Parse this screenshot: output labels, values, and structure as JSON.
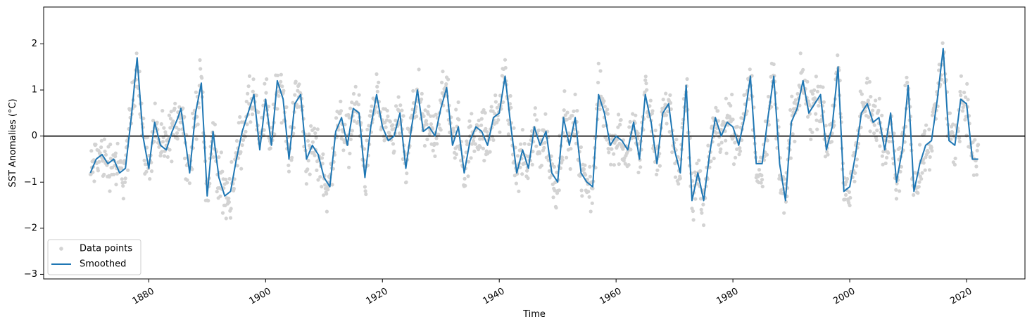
{
  "chart_data": {
    "type": "line",
    "title": "",
    "xlabel": "Time",
    "ylabel": "SST Anomalies (°C)",
    "xlim": [
      1862,
      2030
    ],
    "ylim": [
      -3.1,
      2.8
    ],
    "x_ticks": [
      1880,
      1900,
      1920,
      1940,
      1960,
      1980,
      2000,
      2020
    ],
    "x_tick_labels": [
      "1880",
      "1900",
      "1920",
      "1940",
      "1960",
      "1980",
      "2000",
      "2020"
    ],
    "y_ticks": [
      -3,
      -2,
      -1,
      0,
      1,
      2
    ],
    "y_tick_labels": [
      "−3",
      "−2",
      "−1",
      "0",
      "1",
      "2"
    ],
    "grid": false,
    "legend_position": "lower-left",
    "reference_line": {
      "y": 0,
      "color": "#000000"
    },
    "series": [
      {
        "name": "Data points",
        "kind": "scatter",
        "color": "#d3d3d3",
        "note": "monthly anomalies scattered around the smoothed curve (≈1870–2022)",
        "spread": 0.35
      },
      {
        "name": "Smoothed",
        "kind": "line",
        "color": "#1f77b4",
        "points": [
          [
            1870.0,
            -0.8
          ],
          [
            1871.0,
            -0.5
          ],
          [
            1872.0,
            -0.4
          ],
          [
            1873.0,
            -0.6
          ],
          [
            1874.0,
            -0.5
          ],
          [
            1875.0,
            -0.8
          ],
          [
            1876.0,
            -0.7
          ],
          [
            1877.0,
            0.4
          ],
          [
            1878.0,
            1.7
          ],
          [
            1879.0,
            0.0
          ],
          [
            1880.0,
            -0.7
          ],
          [
            1881.0,
            0.3
          ],
          [
            1882.0,
            -0.2
          ],
          [
            1883.0,
            -0.3
          ],
          [
            1884.0,
            0.1
          ],
          [
            1885.0,
            0.4
          ],
          [
            1885.5,
            0.6
          ],
          [
            1887.0,
            -0.8
          ],
          [
            1888.0,
            0.5
          ],
          [
            1889.0,
            1.15
          ],
          [
            1890.0,
            -1.3
          ],
          [
            1891.0,
            0.1
          ],
          [
            1892.0,
            -0.9
          ],
          [
            1893.0,
            -1.3
          ],
          [
            1894.0,
            -1.2
          ],
          [
            1895.0,
            -0.5
          ],
          [
            1896.0,
            0.1
          ],
          [
            1897.0,
            0.5
          ],
          [
            1898.0,
            0.9
          ],
          [
            1899.0,
            -0.3
          ],
          [
            1900.0,
            0.8
          ],
          [
            1901.0,
            -0.2
          ],
          [
            1902.0,
            1.2
          ],
          [
            1903.0,
            0.8
          ],
          [
            1904.0,
            -0.5
          ],
          [
            1905.0,
            0.7
          ],
          [
            1906.0,
            0.9
          ],
          [
            1907.0,
            -0.5
          ],
          [
            1908.0,
            -0.2
          ],
          [
            1909.0,
            -0.4
          ],
          [
            1910.0,
            -0.9
          ],
          [
            1911.0,
            -1.1
          ],
          [
            1912.0,
            0.1
          ],
          [
            1913.0,
            0.4
          ],
          [
            1914.0,
            -0.2
          ],
          [
            1915.0,
            0.6
          ],
          [
            1916.0,
            0.5
          ],
          [
            1917.0,
            -0.9
          ],
          [
            1918.0,
            0.2
          ],
          [
            1919.0,
            0.9
          ],
          [
            1920.0,
            0.2
          ],
          [
            1921.0,
            -0.1
          ],
          [
            1922.0,
            0.0
          ],
          [
            1923.0,
            0.5
          ],
          [
            1924.0,
            -0.7
          ],
          [
            1925.0,
            0.2
          ],
          [
            1926.0,
            1.0
          ],
          [
            1927.0,
            0.1
          ],
          [
            1928.0,
            0.2
          ],
          [
            1929.0,
            0.0
          ],
          [
            1930.0,
            0.6
          ],
          [
            1931.0,
            1.05
          ],
          [
            1932.0,
            -0.2
          ],
          [
            1933.0,
            0.2
          ],
          [
            1934.0,
            -0.8
          ],
          [
            1935.0,
            -0.1
          ],
          [
            1936.0,
            0.2
          ],
          [
            1937.0,
            0.1
          ],
          [
            1938.0,
            -0.2
          ],
          [
            1939.0,
            0.4
          ],
          [
            1940.0,
            0.5
          ],
          [
            1941.0,
            1.3
          ],
          [
            1942.0,
            0.2
          ],
          [
            1943.0,
            -0.8
          ],
          [
            1944.0,
            -0.3
          ],
          [
            1945.0,
            -0.7
          ],
          [
            1946.0,
            0.2
          ],
          [
            1947.0,
            -0.2
          ],
          [
            1948.0,
            0.1
          ],
          [
            1949.0,
            -0.8
          ],
          [
            1950.0,
            -1.0
          ],
          [
            1951.0,
            0.4
          ],
          [
            1952.0,
            -0.2
          ],
          [
            1953.0,
            0.4
          ],
          [
            1954.0,
            -0.8
          ],
          [
            1955.0,
            -1.0
          ],
          [
            1956.0,
            -1.1
          ],
          [
            1957.0,
            0.9
          ],
          [
            1958.0,
            0.5
          ],
          [
            1959.0,
            -0.2
          ],
          [
            1960.0,
            0.0
          ],
          [
            1961.0,
            -0.1
          ],
          [
            1962.0,
            -0.3
          ],
          [
            1963.0,
            0.3
          ],
          [
            1964.0,
            -0.5
          ],
          [
            1965.0,
            0.9
          ],
          [
            1966.0,
            0.3
          ],
          [
            1967.0,
            -0.6
          ],
          [
            1968.0,
            0.5
          ],
          [
            1969.0,
            0.7
          ],
          [
            1970.0,
            -0.3
          ],
          [
            1971.0,
            -0.8
          ],
          [
            1972.0,
            1.1
          ],
          [
            1973.0,
            -1.4
          ],
          [
            1974.0,
            -0.8
          ],
          [
            1975.0,
            -1.4
          ],
          [
            1976.0,
            -0.4
          ],
          [
            1977.0,
            0.4
          ],
          [
            1978.0,
            0.0
          ],
          [
            1979.0,
            0.3
          ],
          [
            1980.0,
            0.2
          ],
          [
            1981.0,
            -0.2
          ],
          [
            1982.0,
            0.4
          ],
          [
            1983.0,
            1.3
          ],
          [
            1984.0,
            -0.6
          ],
          [
            1985.0,
            -0.6
          ],
          [
            1986.0,
            0.4
          ],
          [
            1987.0,
            1.3
          ],
          [
            1988.0,
            -0.6
          ],
          [
            1989.0,
            -1.4
          ],
          [
            1990.0,
            0.3
          ],
          [
            1991.0,
            0.6
          ],
          [
            1992.0,
            1.2
          ],
          [
            1993.0,
            0.5
          ],
          [
            1994.0,
            0.7
          ],
          [
            1995.0,
            0.9
          ],
          [
            1996.0,
            -0.3
          ],
          [
            1997.0,
            0.2
          ],
          [
            1998.0,
            1.5
          ],
          [
            1999.0,
            -1.2
          ],
          [
            2000.0,
            -1.1
          ],
          [
            2001.0,
            -0.4
          ],
          [
            2002.0,
            0.5
          ],
          [
            2003.0,
            0.7
          ],
          [
            2004.0,
            0.3
          ],
          [
            2005.0,
            0.4
          ],
          [
            2006.0,
            -0.3
          ],
          [
            2007.0,
            0.5
          ],
          [
            2008.0,
            -1.0
          ],
          [
            2009.0,
            -0.3
          ],
          [
            2010.0,
            1.1
          ],
          [
            2011.0,
            -1.2
          ],
          [
            2012.0,
            -0.6
          ],
          [
            2013.0,
            -0.2
          ],
          [
            2014.0,
            -0.1
          ],
          [
            2015.0,
            0.8
          ],
          [
            2016.0,
            1.9
          ],
          [
            2017.0,
            -0.1
          ],
          [
            2018.0,
            -0.2
          ],
          [
            2019.0,
            0.8
          ],
          [
            2020.0,
            0.7
          ],
          [
            2021.0,
            -0.5
          ],
          [
            2022.0,
            -0.5
          ]
        ]
      }
    ]
  }
}
